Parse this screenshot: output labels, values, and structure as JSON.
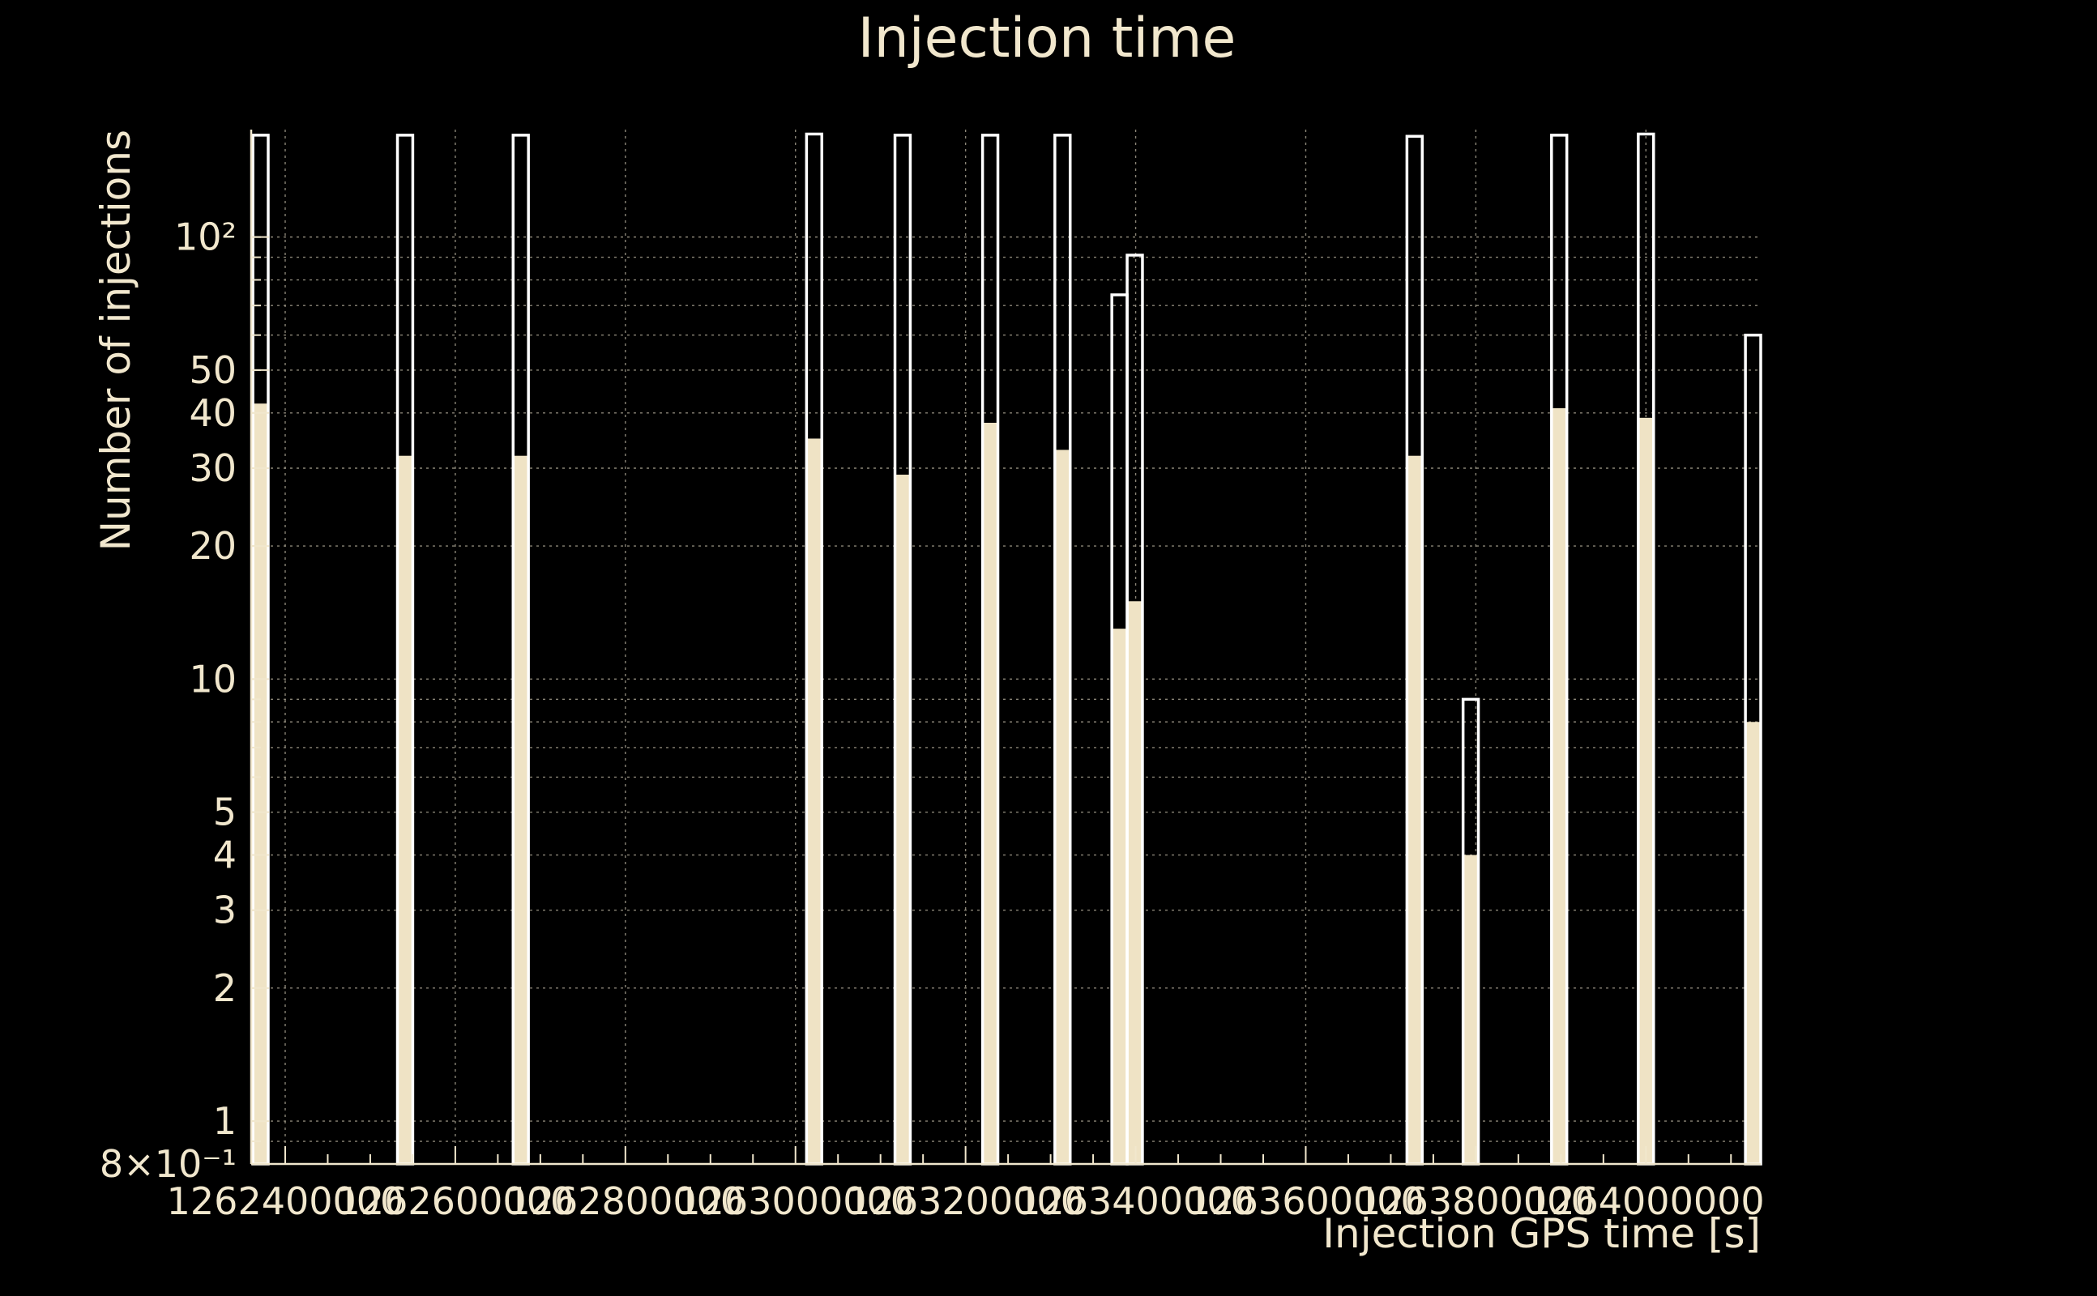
{
  "chart_data": {
    "type": "bar",
    "title": "Injection time",
    "xlabel": "Injection GPS time [s]",
    "ylabel": "Number of injections",
    "yscale": "log",
    "ylim": [
      0.8,
      175
    ],
    "xlim": [
      1262360000,
      1264135000
    ],
    "x_ticks": [
      1262400000,
      1262600000,
      1262800000,
      1263000000,
      1263200000,
      1263400000,
      1263600000,
      1263800000,
      1264000000
    ],
    "x_tick_labels": [
      "1262400000",
      "1262600000",
      "1262800000",
      "1263000000",
      "1263200000",
      "1263400000",
      "1263600000",
      "1263800000",
      "1264000000"
    ],
    "y_ticks": [
      0.8,
      1,
      2,
      3,
      4,
      5,
      10,
      20,
      30,
      40,
      50,
      100
    ],
    "y_tick_labels": [
      "8×10⁻¹",
      "1",
      "2",
      "3",
      "4",
      "5",
      "10",
      "20",
      "30",
      "40",
      "50",
      "10²"
    ],
    "grid": true,
    "series": [
      {
        "fill": true,
        "bins": [
          {
            "x0": 1262362000,
            "x1": 1262380000,
            "value": 42
          },
          {
            "x0": 1262532000,
            "x1": 1262550000,
            "value": 32
          },
          {
            "x0": 1262668000,
            "x1": 1262686000,
            "value": 32
          },
          {
            "x0": 1263013000,
            "x1": 1263031000,
            "value": 35
          },
          {
            "x0": 1263117000,
            "x1": 1263135000,
            "value": 29
          },
          {
            "x0": 1263220000,
            "x1": 1263238000,
            "value": 38
          },
          {
            "x0": 1263305000,
            "x1": 1263323000,
            "value": 33
          },
          {
            "x0": 1263372000,
            "x1": 1263390000,
            "value": 13
          },
          {
            "x0": 1263390000,
            "x1": 1263408000,
            "value": 15
          },
          {
            "x0": 1263719000,
            "x1": 1263737000,
            "value": 32
          },
          {
            "x0": 1263785000,
            "x1": 1263803000,
            "value": 4
          },
          {
            "x0": 1263889000,
            "x1": 1263907000,
            "value": 41
          },
          {
            "x0": 1263991000,
            "x1": 1264009000,
            "value": 39
          },
          {
            "x0": 1264117000,
            "x1": 1264135000,
            "value": 8
          }
        ]
      },
      {
        "fill": false,
        "bins": [
          {
            "x0": 1262362000,
            "x1": 1262380000,
            "value": 170
          },
          {
            "x0": 1262532000,
            "x1": 1262550000,
            "value": 170
          },
          {
            "x0": 1262668000,
            "x1": 1262686000,
            "value": 170
          },
          {
            "x0": 1263013000,
            "x1": 1263031000,
            "value": 171
          },
          {
            "x0": 1263117000,
            "x1": 1263135000,
            "value": 170
          },
          {
            "x0": 1263220000,
            "x1": 1263238000,
            "value": 170
          },
          {
            "x0": 1263305000,
            "x1": 1263323000,
            "value": 170
          },
          {
            "x0": 1263372000,
            "x1": 1263390000,
            "value": 74
          },
          {
            "x0": 1263390000,
            "x1": 1263408000,
            "value": 91
          },
          {
            "x0": 1263719000,
            "x1": 1263737000,
            "value": 169
          },
          {
            "x0": 1263785000,
            "x1": 1263803000,
            "value": 9
          },
          {
            "x0": 1263889000,
            "x1": 1263907000,
            "value": 170
          },
          {
            "x0": 1263991000,
            "x1": 1264009000,
            "value": 171
          },
          {
            "x0": 1264117000,
            "x1": 1264135000,
            "value": 60
          }
        ]
      }
    ]
  }
}
